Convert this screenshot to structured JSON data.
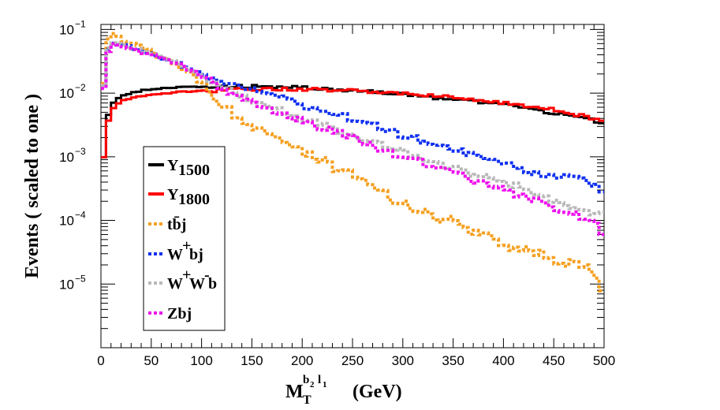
{
  "chart_data": {
    "type": "line",
    "y_scale": "log",
    "ylim": [
      1e-06,
      0.12
    ],
    "xlim": [
      0,
      500
    ],
    "ylabel": "Events  ( scaled to one )",
    "xlabel": {
      "main": "M",
      "sub": "T",
      "sup_b": "b",
      "sup_b_sub": "2",
      "sup_l": "l",
      "sup_l_sub": "1",
      "unit": "(GeV)"
    },
    "x_ticks": [
      0,
      50,
      100,
      150,
      200,
      250,
      300,
      350,
      400,
      450,
      500
    ],
    "y_ticks": [
      {
        "value": 1e-05,
        "base": "10",
        "exp": "−5"
      },
      {
        "value": 0.0001,
        "base": "10",
        "exp": "−4"
      },
      {
        "value": 0.001,
        "base": "10",
        "exp": "−3"
      },
      {
        "value": 0.01,
        "base": "10",
        "exp": "−2"
      },
      {
        "value": 0.1,
        "base": "10",
        "exp": "−1"
      }
    ],
    "legend_position": "left-middle",
    "series": [
      {
        "name": "Y",
        "sub": "1500",
        "color": "#000000",
        "style": "solid",
        "points": [
          [
            0,
            0.0008
          ],
          [
            3,
            0.001
          ],
          [
            6,
            0.004
          ],
          [
            10,
            0.006
          ],
          [
            15,
            0.008
          ],
          [
            20,
            0.009
          ],
          [
            30,
            0.01
          ],
          [
            40,
            0.011
          ],
          [
            50,
            0.0115
          ],
          [
            70,
            0.0122
          ],
          [
            100,
            0.0125
          ],
          [
            150,
            0.0128
          ],
          [
            200,
            0.0122
          ],
          [
            250,
            0.011
          ],
          [
            300,
            0.0095
          ],
          [
            350,
            0.008
          ],
          [
            400,
            0.0065
          ],
          [
            450,
            0.0048
          ],
          [
            470,
            0.0042
          ],
          [
            500,
            0.0035
          ]
        ]
      },
      {
        "name": "Y",
        "sub": "1800",
        "color": "#ff0000",
        "style": "solid",
        "points": [
          [
            0,
            0.0008
          ],
          [
            3,
            0.001
          ],
          [
            6,
            0.003
          ],
          [
            10,
            0.005
          ],
          [
            15,
            0.0065
          ],
          [
            20,
            0.0075
          ],
          [
            30,
            0.0085
          ],
          [
            40,
            0.009
          ],
          [
            50,
            0.0095
          ],
          [
            70,
            0.0102
          ],
          [
            100,
            0.0108
          ],
          [
            150,
            0.0115
          ],
          [
            200,
            0.0115
          ],
          [
            250,
            0.011
          ],
          [
            300,
            0.01
          ],
          [
            350,
            0.0085
          ],
          [
            400,
            0.007
          ],
          [
            450,
            0.0055
          ],
          [
            500,
            0.0037
          ]
        ]
      },
      {
        "name": "tb̄j",
        "sub": "",
        "color": "#f5a020",
        "style": "dotted",
        "points": [
          [
            2,
            0.01
          ],
          [
            5,
            0.06
          ],
          [
            10,
            0.085
          ],
          [
            15,
            0.08
          ],
          [
            25,
            0.065
          ],
          [
            50,
            0.045
          ],
          [
            75,
            0.028
          ],
          [
            100,
            0.015
          ],
          [
            125,
            0.006
          ],
          [
            150,
            0.003
          ],
          [
            175,
            0.0018
          ],
          [
            200,
            0.0012
          ],
          [
            225,
            0.0008
          ],
          [
            250,
            0.0005
          ],
          [
            275,
            0.0003
          ],
          [
            300,
            0.00018
          ],
          [
            325,
            0.00012
          ],
          [
            350,
            0.0001
          ],
          [
            375,
            6e-05
          ],
          [
            400,
            4e-05
          ],
          [
            425,
            3.5e-05
          ],
          [
            450,
            2.5e-05
          ],
          [
            475,
            2e-05
          ],
          [
            490,
            1.5e-05
          ],
          [
            500,
            5e-06
          ]
        ]
      },
      {
        "name": "W",
        "sup": "+",
        "post": "bj",
        "color": "#1030f0",
        "style": "dotted",
        "points": [
          [
            2,
            0.01
          ],
          [
            5,
            0.04
          ],
          [
            10,
            0.065
          ],
          [
            15,
            0.06
          ],
          [
            25,
            0.055
          ],
          [
            50,
            0.04
          ],
          [
            75,
            0.03
          ],
          [
            100,
            0.02
          ],
          [
            125,
            0.014
          ],
          [
            150,
            0.012
          ],
          [
            175,
            0.009
          ],
          [
            200,
            0.0065
          ],
          [
            225,
            0.005
          ],
          [
            250,
            0.004
          ],
          [
            275,
            0.003
          ],
          [
            300,
            0.0022
          ],
          [
            325,
            0.0017
          ],
          [
            350,
            0.0013
          ],
          [
            375,
            0.001
          ],
          [
            400,
            0.0008
          ],
          [
            425,
            0.0006
          ],
          [
            450,
            0.0005
          ],
          [
            475,
            0.00045
          ],
          [
            500,
            0.0003
          ]
        ]
      },
      {
        "name": "W",
        "sup": "+",
        "mid": "W",
        "sup2": "-",
        "post": "b",
        "color": "#b8b8b8",
        "style": "dotted",
        "points": [
          [
            2,
            0.01
          ],
          [
            5,
            0.04
          ],
          [
            10,
            0.065
          ],
          [
            15,
            0.062
          ],
          [
            25,
            0.055
          ],
          [
            50,
            0.042
          ],
          [
            75,
            0.03
          ],
          [
            100,
            0.018
          ],
          [
            125,
            0.011
          ],
          [
            150,
            0.008
          ],
          [
            175,
            0.0055
          ],
          [
            200,
            0.004
          ],
          [
            225,
            0.003
          ],
          [
            250,
            0.0022
          ],
          [
            275,
            0.0016
          ],
          [
            300,
            0.0012
          ],
          [
            325,
            0.0009
          ],
          [
            350,
            0.0007
          ],
          [
            375,
            0.0005
          ],
          [
            400,
            0.0004
          ],
          [
            425,
            0.0003
          ],
          [
            450,
            0.0002
          ],
          [
            475,
            0.00015
          ],
          [
            500,
            0.00012
          ]
        ]
      },
      {
        "name": "Zbj",
        "sub": "",
        "color": "#ee10ee",
        "style": "dotted",
        "points": [
          [
            2,
            0.01
          ],
          [
            5,
            0.035
          ],
          [
            10,
            0.055
          ],
          [
            15,
            0.06
          ],
          [
            25,
            0.05
          ],
          [
            50,
            0.04
          ],
          [
            75,
            0.03
          ],
          [
            100,
            0.018
          ],
          [
            125,
            0.011
          ],
          [
            150,
            0.0075
          ],
          [
            175,
            0.005
          ],
          [
            200,
            0.0037
          ],
          [
            225,
            0.0027
          ],
          [
            250,
            0.002
          ],
          [
            275,
            0.0014
          ],
          [
            300,
            0.001
          ],
          [
            325,
            0.00075
          ],
          [
            350,
            0.00055
          ],
          [
            375,
            0.0004
          ],
          [
            400,
            0.0003
          ],
          [
            425,
            0.00022
          ],
          [
            450,
            0.00016
          ],
          [
            475,
            0.00012
          ],
          [
            490,
            0.0001
          ],
          [
            500,
            5e-05
          ]
        ]
      }
    ]
  }
}
